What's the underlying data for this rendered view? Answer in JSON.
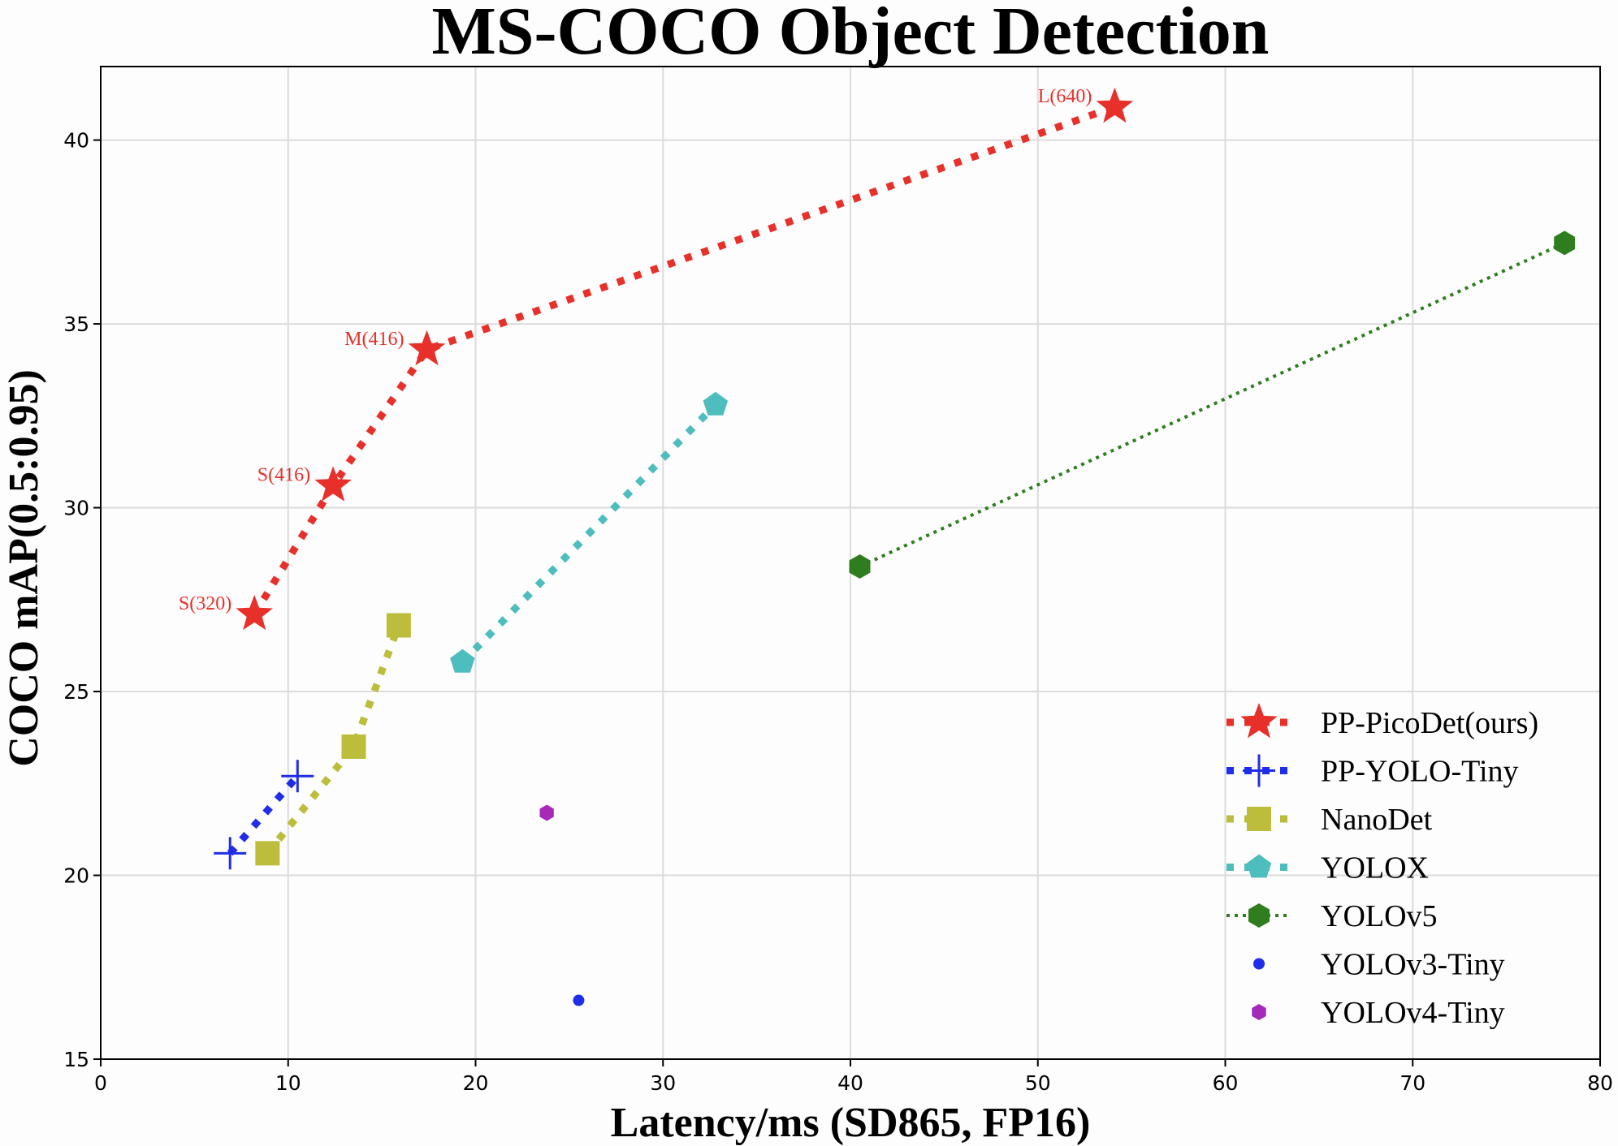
{
  "chart_data": {
    "type": "scatter",
    "title": "MS-COCO Object Detection",
    "xlabel": "Latency/ms (SD865, FP16)",
    "ylabel": "COCO mAP(0.5:0.95)",
    "xlim": [
      0,
      80
    ],
    "ylim": [
      15,
      42
    ],
    "xticks": [
      0,
      10,
      20,
      30,
      40,
      50,
      60,
      70,
      80
    ],
    "yticks": [
      15,
      20,
      25,
      30,
      35,
      40
    ],
    "grid": true,
    "legend_position": "bottom-right",
    "series": [
      {
        "name": "PP-PicoDet(ours)",
        "color": "#e8302a",
        "marker": "star",
        "line": "dotted-thick",
        "x": [
          8.2,
          12.4,
          17.4,
          54.1
        ],
        "y": [
          27.1,
          30.6,
          34.3,
          40.9
        ],
        "labels": [
          "S(320)",
          "S(416)",
          "M(416)",
          "L(640)"
        ]
      },
      {
        "name": "PP-YOLO-Tiny",
        "color": "#1f2de8",
        "marker": "plus",
        "line": "dotted-thick",
        "x": [
          6.9,
          10.5
        ],
        "y": [
          20.6,
          22.7
        ]
      },
      {
        "name": "NanoDet",
        "color": "#bcbd3a",
        "marker": "square",
        "line": "dotted-thick",
        "x": [
          8.9,
          13.5,
          15.9
        ],
        "y": [
          20.6,
          23.5,
          26.8
        ]
      },
      {
        "name": "YOLOX",
        "color": "#4dbdbd",
        "marker": "pentagon",
        "line": "dotted-thick",
        "x": [
          19.3,
          32.8
        ],
        "y": [
          25.8,
          32.8
        ]
      },
      {
        "name": "YOLOv5",
        "color": "#2e7d1e",
        "marker": "hexagon",
        "line": "dotted-thin",
        "x": [
          40.5,
          78.1
        ],
        "y": [
          28.4,
          37.2
        ]
      },
      {
        "name": "YOLOv3-Tiny",
        "color": "#1f2de8",
        "marker": "circle",
        "line": "none",
        "x": [
          25.5
        ],
        "y": [
          16.6
        ]
      },
      {
        "name": "YOLOv4-Tiny",
        "color": "#a52aba",
        "marker": "hexagon-small",
        "line": "none",
        "x": [
          23.8
        ],
        "y": [
          21.7
        ]
      }
    ]
  }
}
